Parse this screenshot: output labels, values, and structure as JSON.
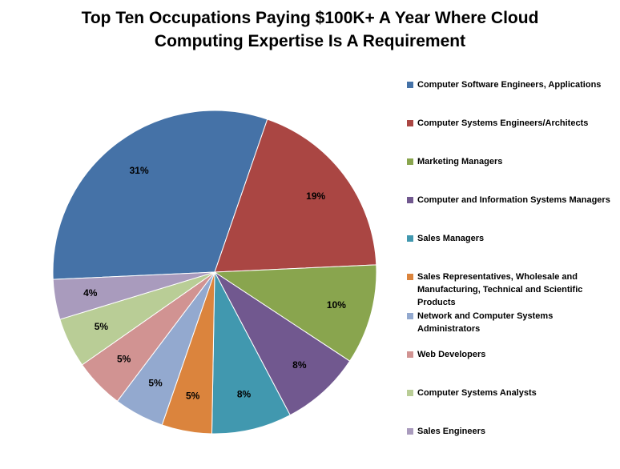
{
  "chart_data": {
    "type": "pie",
    "title": "Top Ten Occupations Paying $100K+ A Year Where Cloud Computing Expertise Is A Requirement",
    "categories": [
      "Computer Software Engineers, Applications",
      "Computer Systems Engineers/Architects",
      "Marketing Managers",
      "Computer and Information Systems Managers",
      "Sales Managers",
      "Sales Representatives, Wholesale and Manufacturing, Technical and Scientific Products",
      "Network and Computer Systems Administrators",
      "Web Developers",
      "Computer Systems Analysts",
      "Sales Engineers"
    ],
    "values": [
      31,
      19,
      10,
      8,
      8,
      5,
      5,
      5,
      5,
      4
    ],
    "value_labels": [
      "31%",
      "19%",
      "10%",
      "8%",
      "8%",
      "5%",
      "5%",
      "5%",
      "5%",
      "4%"
    ],
    "colors": [
      "#4572a7",
      "#aa4643",
      "#89a54e",
      "#71588f",
      "#4198af",
      "#db843d",
      "#93a9cf",
      "#d19392",
      "#b9cd96",
      "#a99bbd"
    ],
    "legend": "right"
  }
}
